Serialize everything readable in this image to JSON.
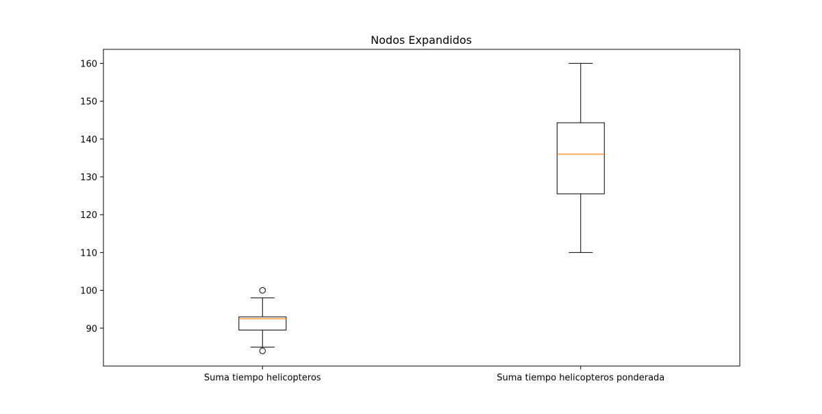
{
  "chart_data": {
    "type": "box",
    "title": "Nodos Expandidos",
    "xlabel": "",
    "ylabel": "",
    "ylim": [
      80,
      163.7
    ],
    "yticks": [
      90,
      100,
      110,
      120,
      130,
      140,
      150,
      160
    ],
    "categories": [
      "Suma tiempo helicopteros",
      "Suma tiempo helicopteros ponderada"
    ],
    "boxes": [
      {
        "label": "Suma tiempo helicopteros",
        "whisker_low": 85,
        "q1": 89.5,
        "median": 92.5,
        "q3": 93,
        "whisker_high": 98,
        "outliers": [
          100,
          84
        ]
      },
      {
        "label": "Suma tiempo helicopteros ponderada",
        "whisker_low": 110,
        "q1": 125.5,
        "median": 136,
        "q3": 144.3,
        "whisker_high": 160,
        "outliers": []
      }
    ],
    "grid": false,
    "colors": {
      "box": "#000000",
      "median": "#ff7f0e",
      "outlier": "#000000"
    }
  }
}
